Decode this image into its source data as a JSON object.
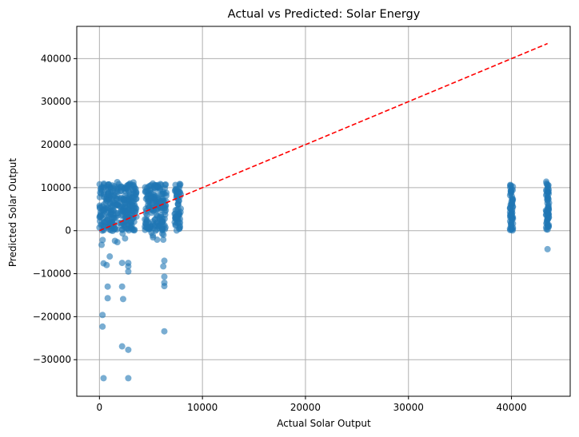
{
  "chart_data": {
    "type": "scatter",
    "title": "Actual vs Predicted: Solar Energy",
    "xlabel": "Actual Solar Output",
    "ylabel": "Predicted Solar Output",
    "xlim": [
      -2200,
      45700
    ],
    "ylim": [
      -38500,
      47500
    ],
    "xticks": [
      0,
      10000,
      20000,
      30000,
      40000
    ],
    "yticks": [
      -30000,
      -20000,
      -10000,
      0,
      10000,
      20000,
      30000,
      40000
    ],
    "grid": true,
    "colors": {
      "points": "#1f77b4",
      "reference_line": "#ff0000"
    },
    "reference_line": {
      "style": "dashed",
      "x": [
        0,
        43500
      ],
      "y": [
        0,
        43500
      ]
    },
    "clusters": [
      {
        "x_range": [
          0,
          3600
        ],
        "y_range": [
          -3500,
          11800
        ]
      },
      {
        "x_range": [
          4400,
          6500
        ],
        "y_range": [
          -2000,
          11200
        ]
      },
      {
        "x_range": [
          7300,
          7900
        ],
        "y_range": [
          0,
          10500
        ]
      },
      {
        "x_range": [
          39850,
          40150
        ],
        "y_range": [
          500,
          11000
        ]
      },
      {
        "x_range": [
          43350,
          43650
        ],
        "y_range": [
          1000,
          11500
        ]
      }
    ],
    "outliers": [
      [
        400,
        -34300
      ],
      [
        2800,
        -34300
      ],
      [
        2200,
        -26900
      ],
      [
        2800,
        -27700
      ],
      [
        6300,
        -23400
      ],
      [
        300,
        -22300
      ],
      [
        300,
        -19600
      ],
      [
        2300,
        -15900
      ],
      [
        800,
        -15700
      ],
      [
        800,
        -13000
      ],
      [
        2200,
        -13000
      ],
      [
        6300,
        -12900
      ],
      [
        6300,
        -12100
      ],
      [
        6300,
        -10700
      ],
      [
        2800,
        -9500
      ],
      [
        2800,
        -8300
      ],
      [
        6200,
        -8300
      ],
      [
        700,
        -8000
      ],
      [
        400,
        -7600
      ],
      [
        2800,
        -7500
      ],
      [
        2200,
        -7500
      ],
      [
        6300,
        -7000
      ],
      [
        1000,
        -6000
      ],
      [
        5600,
        -2100
      ],
      [
        6200,
        -2100
      ],
      [
        43500,
        -4300
      ],
      [
        40000,
        400
      ],
      [
        43500,
        900
      ]
    ]
  }
}
